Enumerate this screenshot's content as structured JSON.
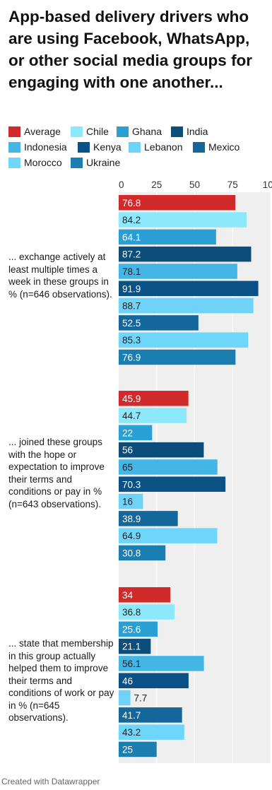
{
  "title": "App-based delivery drivers who are using Facebook, WhatsApp, or other social media groups for engaging with one another...",
  "footer": "Created with Datawrapper",
  "legend": [
    {
      "name": "Average",
      "color": "#d02a2b"
    },
    {
      "name": "Chile",
      "color": "#8ee8fb"
    },
    {
      "name": "Ghana",
      "color": "#2a9fd3"
    },
    {
      "name": "India",
      "color": "#0d4d79"
    },
    {
      "name": "Indonesia",
      "color": "#44b6e6"
    },
    {
      "name": "Kenya",
      "color": "#0a5285"
    },
    {
      "name": "Lebanon",
      "color": "#6fd3f7"
    },
    {
      "name": "Mexico",
      "color": "#13679a"
    },
    {
      "name": "Morocco",
      "color": "#6ed6fb"
    },
    {
      "name": "Ukraine",
      "color": "#1a7fb0"
    }
  ],
  "chart_data": {
    "type": "bar",
    "orientation": "horizontal",
    "xlim": [
      0,
      100
    ],
    "ticks": [
      0,
      25,
      50,
      75,
      100
    ],
    "grid": true,
    "legend_position": "top",
    "series_names": [
      "Average",
      "Chile",
      "Ghana",
      "India",
      "Indonesia",
      "Kenya",
      "Lebanon",
      "Mexico",
      "Morocco",
      "Ukraine"
    ],
    "groups": [
      {
        "label": "... exchange actively at least multiple times a week in these groups in % (n=646 observations).",
        "values": [
          76.8,
          84.2,
          64.1,
          87.2,
          78.1,
          91.9,
          88.7,
          52.5,
          85.3,
          76.9
        ]
      },
      {
        "label": "... joined these groups with the hope or expectation to improve their terms and conditions or pay in % (n=643 observations).",
        "values": [
          45.9,
          44.7,
          22,
          56,
          65,
          70.3,
          16,
          38.9,
          64.9,
          30.8
        ]
      },
      {
        "label": "... state that membership in this group actually helped them to improve their terms and conditions of work or pay in % (n=645 observations).",
        "values": [
          34,
          36.8,
          25.6,
          21.1,
          56.1,
          46,
          7.7,
          41.7,
          43.2,
          25
        ]
      }
    ]
  }
}
